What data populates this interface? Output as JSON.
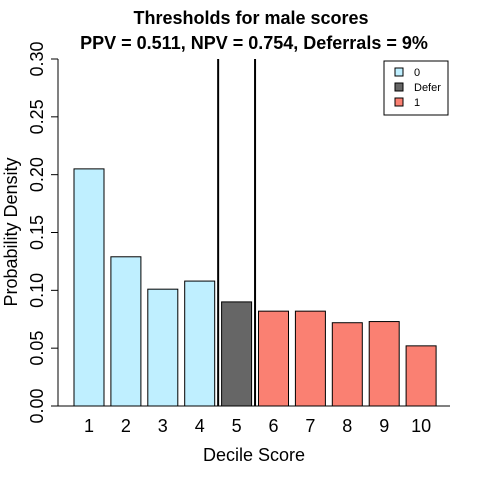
{
  "chart_data": {
    "type": "bar",
    "title": "Thresholds for male scores",
    "subtitle": "PPV = 0.511, NPV = 0.754,  Deferrals = 9%",
    "xlabel": "Decile Score",
    "ylabel": "Probability Density",
    "ylim": [
      0,
      0.3
    ],
    "yticks": [
      "0.00",
      "0.05",
      "0.10",
      "0.15",
      "0.20",
      "0.25",
      "0.30"
    ],
    "categories": [
      "1",
      "2",
      "3",
      "4",
      "5",
      "6",
      "7",
      "8",
      "9",
      "10"
    ],
    "values": [
      0.205,
      0.129,
      0.101,
      0.108,
      0.09,
      0.082,
      0.082,
      0.072,
      0.073,
      0.052
    ],
    "groups": [
      "0",
      "0",
      "0",
      "0",
      "Defer",
      "1",
      "1",
      "1",
      "1",
      "1"
    ],
    "thresholds_between": [
      [
        4,
        5
      ],
      [
        5,
        6
      ]
    ],
    "grid": false,
    "legend": {
      "placement": "top-right",
      "entries": [
        {
          "label": "0",
          "color": "#bfefff"
        },
        {
          "label": "Defer",
          "color": "#666666"
        },
        {
          "label": "1",
          "color": "#fa8072"
        }
      ]
    }
  }
}
